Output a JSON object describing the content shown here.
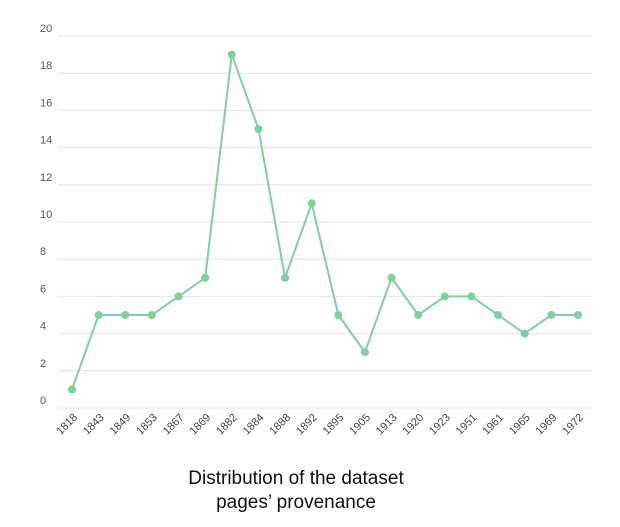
{
  "caption": {
    "line1": "Distribution of the dataset",
    "line2": "pages’ provenance"
  },
  "chart_data": {
    "type": "line",
    "categories": [
      "1818",
      "1843",
      "1849",
      "1853",
      "1867",
      "1869",
      "1882",
      "1884",
      "1888",
      "1892",
      "1895",
      "1905",
      "1913",
      "1920",
      "1923",
      "1951",
      "1961",
      "1965",
      "1969",
      "1972"
    ],
    "values": [
      1,
      5,
      5,
      5,
      6,
      7,
      19,
      15,
      7,
      11,
      5,
      3,
      7,
      5,
      6,
      6,
      5,
      4,
      5,
      5
    ],
    "ylim": [
      0,
      20
    ],
    "yticks": [
      0,
      2,
      4,
      6,
      8,
      10,
      12,
      14,
      16,
      18,
      20
    ],
    "grid": true,
    "legend": "none",
    "line_color": "#7fcf9f",
    "grid_color": "#e4e4e4"
  }
}
